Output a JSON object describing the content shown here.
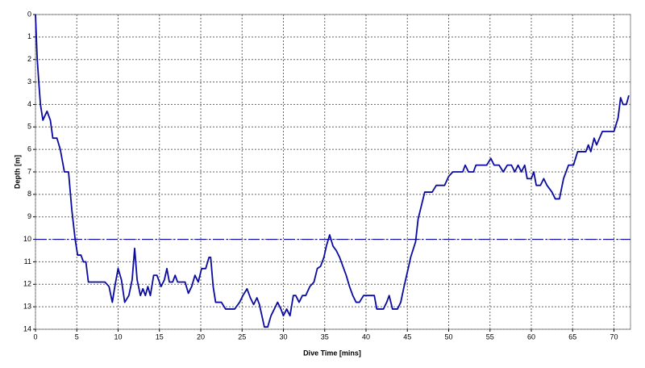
{
  "chart_data": {
    "type": "line",
    "xlabel": "Dive Time [mins]",
    "ylabel": "Depth [m]",
    "xlim": [
      0,
      72
    ],
    "ylim": [
      0,
      14
    ],
    "y_inverted": true,
    "xticks": [
      0,
      5,
      10,
      15,
      20,
      25,
      30,
      35,
      40,
      45,
      50,
      55,
      60,
      65,
      70
    ],
    "yticks": [
      0,
      1,
      2,
      3,
      4,
      5,
      6,
      7,
      8,
      9,
      10,
      11,
      12,
      13,
      14
    ],
    "grid": true,
    "hline": 10,
    "series": [
      {
        "color": "#0a0aa0",
        "x": [
          0,
          0.2,
          0.4,
          0.6,
          0.9,
          1.4,
          1.8,
          2.1,
          2.6,
          3.0,
          3.5,
          4.0,
          4.4,
          4.8,
          5.1,
          5.5,
          5.8,
          6.1,
          6.4,
          6.8,
          8.4,
          8.9,
          9.3,
          9.6,
          10,
          10.4,
          10.8,
          11.3,
          11.7,
          12,
          12.3,
          12.7,
          13,
          13.3,
          13.6,
          13.9,
          14.3,
          14.7,
          15.2,
          15.6,
          15.9,
          16.2,
          16.6,
          16.9,
          17.2,
          18.1,
          18.5,
          18.9,
          19.3,
          19.7,
          20.1,
          20.6,
          21.0,
          21.2,
          21.5,
          21.8,
          22.5,
          23,
          24.1,
          24.7,
          25.1,
          25.6,
          26,
          26.4,
          26.8,
          27.1,
          27.4,
          27.7,
          28.1,
          28.5,
          28.9,
          29.3,
          29.7,
          30,
          30.4,
          30.8,
          31.2,
          31.5,
          31.9,
          32.3,
          32.7,
          33.2,
          33.7,
          34.1,
          34.5,
          34.9,
          35.2,
          35.6,
          36,
          36.4,
          36.8,
          37.2,
          37.6,
          38,
          38.4,
          38.8,
          39.2,
          39.7,
          40.5,
          41,
          41.3,
          42.1,
          42.5,
          42.8,
          43.2,
          43.8,
          44.2,
          44.6,
          45.1,
          45.4,
          46,
          46.3,
          46.7,
          47.1,
          48,
          48.5,
          49.5,
          50,
          50.5,
          51.7,
          52,
          52.4,
          53,
          53.3,
          54.6,
          55.1,
          55.5,
          56.1,
          56.6,
          57.1,
          57.6,
          58,
          58.4,
          58.8,
          59.2,
          59.5,
          60,
          60.3,
          60.6,
          61.1,
          61.5,
          61.9,
          62.5,
          62.9,
          63.4,
          63.9,
          64.5,
          65.1,
          65.6,
          66.6,
          66.9,
          67.2,
          67.6,
          67.9,
          68.6,
          70,
          70.5,
          70.8,
          71.1,
          71.5,
          71.8
        ],
        "values": [
          0,
          1.9,
          3,
          4,
          4.7,
          4.3,
          4.7,
          5.5,
          5.5,
          6,
          7,
          7,
          8.7,
          10,
          10.7,
          10.7,
          11,
          11,
          11.9,
          11.9,
          11.9,
          12.1,
          12.8,
          12.1,
          11.3,
          11.8,
          12.8,
          12.5,
          11.8,
          10.4,
          11.8,
          12.5,
          12.2,
          12.5,
          12.1,
          12.5,
          11.6,
          11.6,
          12.1,
          11.8,
          11.3,
          11.9,
          11.9,
          11.6,
          11.9,
          11.9,
          12.4,
          12.1,
          11.6,
          11.9,
          11.3,
          11.3,
          10.8,
          10.8,
          12.1,
          12.8,
          12.8,
          13.1,
          13.1,
          12.8,
          12.5,
          12.2,
          12.6,
          12.9,
          12.6,
          12.9,
          13.4,
          13.9,
          13.9,
          13.4,
          13.1,
          12.8,
          13.1,
          13.4,
          13.1,
          13.4,
          12.5,
          12.5,
          12.8,
          12.5,
          12.5,
          12.1,
          11.9,
          11.3,
          11.2,
          10.8,
          10.3,
          9.8,
          10.3,
          10.5,
          10.8,
          11.2,
          11.6,
          12.1,
          12.5,
          12.8,
          12.8,
          12.5,
          12.5,
          12.5,
          13.1,
          13.1,
          12.8,
          12.5,
          13.1,
          13.1,
          12.8,
          12.1,
          11.3,
          10.8,
          10.1,
          9.1,
          8.5,
          7.9,
          7.9,
          7.6,
          7.6,
          7.2,
          7,
          7,
          6.7,
          7,
          7,
          6.7,
          6.7,
          6.4,
          6.7,
          6.7,
          7,
          6.7,
          6.7,
          7,
          6.7,
          7,
          6.7,
          7.3,
          7.3,
          7,
          7.6,
          7.6,
          7.3,
          7.6,
          7.9,
          8.2,
          8.2,
          7.3,
          6.7,
          6.7,
          6.1,
          6.1,
          5.8,
          6.1,
          5.5,
          5.8,
          5.2,
          5.2,
          4.6,
          3.7,
          4,
          4,
          3.6
        ]
      }
    ]
  }
}
